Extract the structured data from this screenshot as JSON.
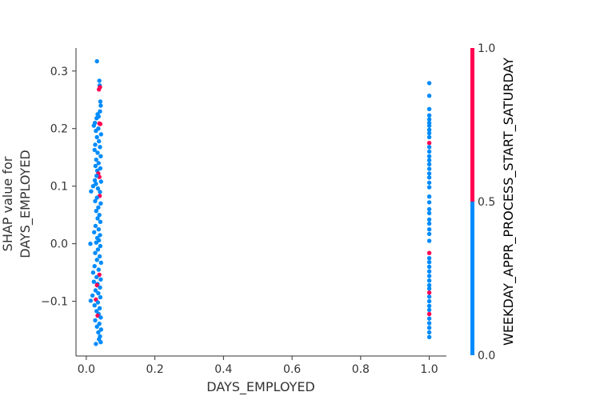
{
  "chart_data": {
    "type": "scatter",
    "xlabel": "DAYS_EMPLOYED",
    "ylabel_lines": [
      "SHAP value for",
      "DAYS_EMPLOYED"
    ],
    "xlim": [
      -0.03,
      1.05
    ],
    "ylim": [
      -0.195,
      0.34
    ],
    "x_ticks": [
      {
        "value": 0.0,
        "label": "0.0"
      },
      {
        "value": 0.2,
        "label": "0.2"
      },
      {
        "value": 0.4,
        "label": "0.4"
      },
      {
        "value": 0.6,
        "label": "0.6"
      },
      {
        "value": 0.8,
        "label": "0.8"
      },
      {
        "value": 1.0,
        "label": "1.0"
      }
    ],
    "y_ticks": [
      {
        "value": -0.1,
        "label": "−0.1"
      },
      {
        "value": 0.0,
        "label": "0.0"
      },
      {
        "value": 0.1,
        "label": "0.1"
      },
      {
        "value": 0.2,
        "label": "0.2"
      },
      {
        "value": 0.3,
        "label": "0.3"
      }
    ],
    "colorbar": {
      "label": "WEEKDAY_APPR_PROCESS_START_SATURDAY",
      "range": [
        0.0,
        1.0
      ],
      "ticks": [
        {
          "value": 0.0,
          "label": "0.0"
        },
        {
          "value": 0.5,
          "label": "0.5"
        },
        {
          "value": 1.0,
          "label": "1.0"
        }
      ],
      "low_color": "#008bfb",
      "high_color": "#ff0052"
    },
    "colors": {
      "blue": "#008bfb",
      "red": "#ff0052"
    },
    "grid": false,
    "points": [
      {
        "x": 0.031,
        "y": 0.317,
        "c": 0
      },
      {
        "x": 0.038,
        "y": 0.283,
        "c": 0
      },
      {
        "x": 0.039,
        "y": 0.275,
        "c": 0
      },
      {
        "x": 0.037,
        "y": 0.268,
        "c": 1
      },
      {
        "x": 0.04,
        "y": 0.272,
        "c": 1
      },
      {
        "x": 0.041,
        "y": 0.247,
        "c": 0
      },
      {
        "x": 0.042,
        "y": 0.24,
        "c": 0
      },
      {
        "x": 0.033,
        "y": 0.225,
        "c": 0
      },
      {
        "x": 0.036,
        "y": 0.221,
        "c": 0
      },
      {
        "x": 0.04,
        "y": 0.23,
        "c": 0
      },
      {
        "x": 0.03,
        "y": 0.218,
        "c": 0
      },
      {
        "x": 0.025,
        "y": 0.21,
        "c": 0
      },
      {
        "x": 0.038,
        "y": 0.209,
        "c": 1
      },
      {
        "x": 0.041,
        "y": 0.208,
        "c": 1
      },
      {
        "x": 0.022,
        "y": 0.205,
        "c": 0
      },
      {
        "x": 0.028,
        "y": 0.196,
        "c": 0
      },
      {
        "x": 0.035,
        "y": 0.2,
        "c": 0
      },
      {
        "x": 0.043,
        "y": 0.19,
        "c": 0
      },
      {
        "x": 0.031,
        "y": 0.185,
        "c": 0
      },
      {
        "x": 0.037,
        "y": 0.178,
        "c": 0
      },
      {
        "x": 0.026,
        "y": 0.172,
        "c": 0
      },
      {
        "x": 0.04,
        "y": 0.168,
        "c": 0
      },
      {
        "x": 0.024,
        "y": 0.163,
        "c": 0
      },
      {
        "x": 0.033,
        "y": 0.158,
        "c": 0
      },
      {
        "x": 0.042,
        "y": 0.152,
        "c": 0
      },
      {
        "x": 0.029,
        "y": 0.146,
        "c": 0
      },
      {
        "x": 0.036,
        "y": 0.14,
        "c": 0
      },
      {
        "x": 0.027,
        "y": 0.135,
        "c": 0
      },
      {
        "x": 0.041,
        "y": 0.131,
        "c": 0
      },
      {
        "x": 0.032,
        "y": 0.127,
        "c": 0
      },
      {
        "x": 0.035,
        "y": 0.122,
        "c": 1
      },
      {
        "x": 0.038,
        "y": 0.116,
        "c": 1
      },
      {
        "x": 0.03,
        "y": 0.118,
        "c": 0
      },
      {
        "x": 0.025,
        "y": 0.11,
        "c": 0
      },
      {
        "x": 0.043,
        "y": 0.108,
        "c": 0
      },
      {
        "x": 0.02,
        "y": 0.1,
        "c": 0
      },
      {
        "x": 0.028,
        "y": 0.104,
        "c": 0
      },
      {
        "x": 0.034,
        "y": 0.096,
        "c": 0
      },
      {
        "x": 0.014,
        "y": 0.091,
        "c": 0
      },
      {
        "x": 0.04,
        "y": 0.09,
        "c": 0
      },
      {
        "x": 0.039,
        "y": 0.083,
        "c": 1
      },
      {
        "x": 0.031,
        "y": 0.08,
        "c": 0
      },
      {
        "x": 0.026,
        "y": 0.074,
        "c": 0
      },
      {
        "x": 0.042,
        "y": 0.07,
        "c": 0
      },
      {
        "x": 0.035,
        "y": 0.063,
        "c": 0
      },
      {
        "x": 0.029,
        "y": 0.057,
        "c": 0
      },
      {
        "x": 0.038,
        "y": 0.05,
        "c": 0
      },
      {
        "x": 0.033,
        "y": 0.044,
        "c": 0
      },
      {
        "x": 0.041,
        "y": 0.038,
        "c": 0
      },
      {
        "x": 0.027,
        "y": 0.031,
        "c": 0
      },
      {
        "x": 0.036,
        "y": 0.025,
        "c": 0
      },
      {
        "x": 0.023,
        "y": 0.02,
        "c": 0
      },
      {
        "x": 0.04,
        "y": 0.015,
        "c": 0
      },
      {
        "x": 0.032,
        "y": 0.01,
        "c": 0
      },
      {
        "x": 0.037,
        "y": 0.006,
        "c": 0
      },
      {
        "x": 0.012,
        "y": 0.0,
        "c": 0
      },
      {
        "x": 0.029,
        "y": 0.002,
        "c": 0
      },
      {
        "x": 0.041,
        "y": -0.004,
        "c": 0
      },
      {
        "x": 0.034,
        "y": -0.01,
        "c": 0
      },
      {
        "x": 0.026,
        "y": -0.016,
        "c": 0
      },
      {
        "x": 0.039,
        "y": -0.022,
        "c": 0
      },
      {
        "x": 0.031,
        "y": -0.028,
        "c": 0
      },
      {
        "x": 0.043,
        "y": -0.033,
        "c": 0
      },
      {
        "x": 0.024,
        "y": -0.039,
        "c": 0
      },
      {
        "x": 0.036,
        "y": -0.045,
        "c": 0
      },
      {
        "x": 0.02,
        "y": -0.05,
        "c": 0
      },
      {
        "x": 0.038,
        "y": -0.054,
        "c": 1
      },
      {
        "x": 0.03,
        "y": -0.058,
        "c": 0
      },
      {
        "x": 0.042,
        "y": -0.062,
        "c": 0
      },
      {
        "x": 0.022,
        "y": -0.066,
        "c": 0
      },
      {
        "x": 0.033,
        "y": -0.07,
        "c": 0
      },
      {
        "x": 0.031,
        "y": -0.072,
        "c": 1
      },
      {
        "x": 0.04,
        "y": -0.076,
        "c": 0
      },
      {
        "x": 0.027,
        "y": -0.081,
        "c": 0
      },
      {
        "x": 0.035,
        "y": -0.086,
        "c": 0
      },
      {
        "x": 0.018,
        "y": -0.09,
        "c": 0
      },
      {
        "x": 0.041,
        "y": -0.093,
        "c": 0
      },
      {
        "x": 0.028,
        "y": -0.097,
        "c": 1
      },
      {
        "x": 0.013,
        "y": -0.099,
        "c": 0
      },
      {
        "x": 0.034,
        "y": -0.102,
        "c": 0
      },
      {
        "x": 0.024,
        "y": -0.107,
        "c": 0
      },
      {
        "x": 0.039,
        "y": -0.112,
        "c": 0
      },
      {
        "x": 0.03,
        "y": -0.117,
        "c": 0
      },
      {
        "x": 0.036,
        "y": -0.122,
        "c": 0
      },
      {
        "x": 0.033,
        "y": -0.125,
        "c": 1
      },
      {
        "x": 0.042,
        "y": -0.128,
        "c": 0
      },
      {
        "x": 0.026,
        "y": -0.133,
        "c": 0
      },
      {
        "x": 0.038,
        "y": -0.139,
        "c": 0
      },
      {
        "x": 0.031,
        "y": -0.144,
        "c": 0
      },
      {
        "x": 0.043,
        "y": -0.149,
        "c": 0
      },
      {
        "x": 0.035,
        "y": -0.154,
        "c": 0
      },
      {
        "x": 0.04,
        "y": -0.161,
        "c": 0
      },
      {
        "x": 0.037,
        "y": -0.166,
        "c": 0
      },
      {
        "x": 0.042,
        "y": -0.171,
        "c": 0
      },
      {
        "x": 0.028,
        "y": -0.174,
        "c": 0
      },
      {
        "x": 1.0,
        "y": 0.279,
        "c": 0
      },
      {
        "x": 1.0,
        "y": 0.257,
        "c": 0
      },
      {
        "x": 1.0,
        "y": 0.234,
        "c": 0
      },
      {
        "x": 1.0,
        "y": 0.223,
        "c": 0
      },
      {
        "x": 1.0,
        "y": 0.216,
        "c": 0
      },
      {
        "x": 1.0,
        "y": 0.21,
        "c": 0
      },
      {
        "x": 1.0,
        "y": 0.205,
        "c": 0
      },
      {
        "x": 1.0,
        "y": 0.198,
        "c": 0
      },
      {
        "x": 1.0,
        "y": 0.192,
        "c": 0
      },
      {
        "x": 1.0,
        "y": 0.185,
        "c": 0
      },
      {
        "x": 1.0,
        "y": 0.175,
        "c": 1
      },
      {
        "x": 1.0,
        "y": 0.168,
        "c": 0
      },
      {
        "x": 1.0,
        "y": 0.16,
        "c": 0
      },
      {
        "x": 1.0,
        "y": 0.152,
        "c": 0
      },
      {
        "x": 1.0,
        "y": 0.145,
        "c": 0
      },
      {
        "x": 1.0,
        "y": 0.138,
        "c": 0
      },
      {
        "x": 1.0,
        "y": 0.13,
        "c": 0
      },
      {
        "x": 1.0,
        "y": 0.122,
        "c": 0
      },
      {
        "x": 1.0,
        "y": 0.115,
        "c": 0
      },
      {
        "x": 1.0,
        "y": 0.106,
        "c": 0
      },
      {
        "x": 1.0,
        "y": 0.098,
        "c": 0
      },
      {
        "x": 1.0,
        "y": 0.082,
        "c": 0
      },
      {
        "x": 1.0,
        "y": 0.072,
        "c": 0
      },
      {
        "x": 1.0,
        "y": 0.06,
        "c": 0
      },
      {
        "x": 1.0,
        "y": 0.053,
        "c": 0
      },
      {
        "x": 1.0,
        "y": 0.042,
        "c": 0
      },
      {
        "x": 1.0,
        "y": 0.035,
        "c": 0
      },
      {
        "x": 1.0,
        "y": 0.025,
        "c": 0
      },
      {
        "x": 1.0,
        "y": 0.017,
        "c": 0
      },
      {
        "x": 1.0,
        "y": 0.005,
        "c": 0
      },
      {
        "x": 1.0,
        "y": -0.016,
        "c": 1
      },
      {
        "x": 1.0,
        "y": -0.025,
        "c": 0
      },
      {
        "x": 1.0,
        "y": -0.032,
        "c": 0
      },
      {
        "x": 1.0,
        "y": -0.04,
        "c": 0
      },
      {
        "x": 1.0,
        "y": -0.048,
        "c": 0
      },
      {
        "x": 1.0,
        "y": -0.056,
        "c": 0
      },
      {
        "x": 1.0,
        "y": -0.064,
        "c": 0
      },
      {
        "x": 1.0,
        "y": -0.072,
        "c": 0
      },
      {
        "x": 1.0,
        "y": -0.078,
        "c": 0
      },
      {
        "x": 1.0,
        "y": -0.085,
        "c": 1
      },
      {
        "x": 1.0,
        "y": -0.092,
        "c": 0
      },
      {
        "x": 1.0,
        "y": -0.1,
        "c": 0
      },
      {
        "x": 1.0,
        "y": -0.108,
        "c": 0
      },
      {
        "x": 1.0,
        "y": -0.115,
        "c": 0
      },
      {
        "x": 1.0,
        "y": -0.122,
        "c": 1
      },
      {
        "x": 1.0,
        "y": -0.13,
        "c": 0
      },
      {
        "x": 1.0,
        "y": -0.138,
        "c": 0
      },
      {
        "x": 1.0,
        "y": -0.146,
        "c": 0
      },
      {
        "x": 1.0,
        "y": -0.154,
        "c": 0
      },
      {
        "x": 1.0,
        "y": -0.162,
        "c": 0
      }
    ]
  }
}
